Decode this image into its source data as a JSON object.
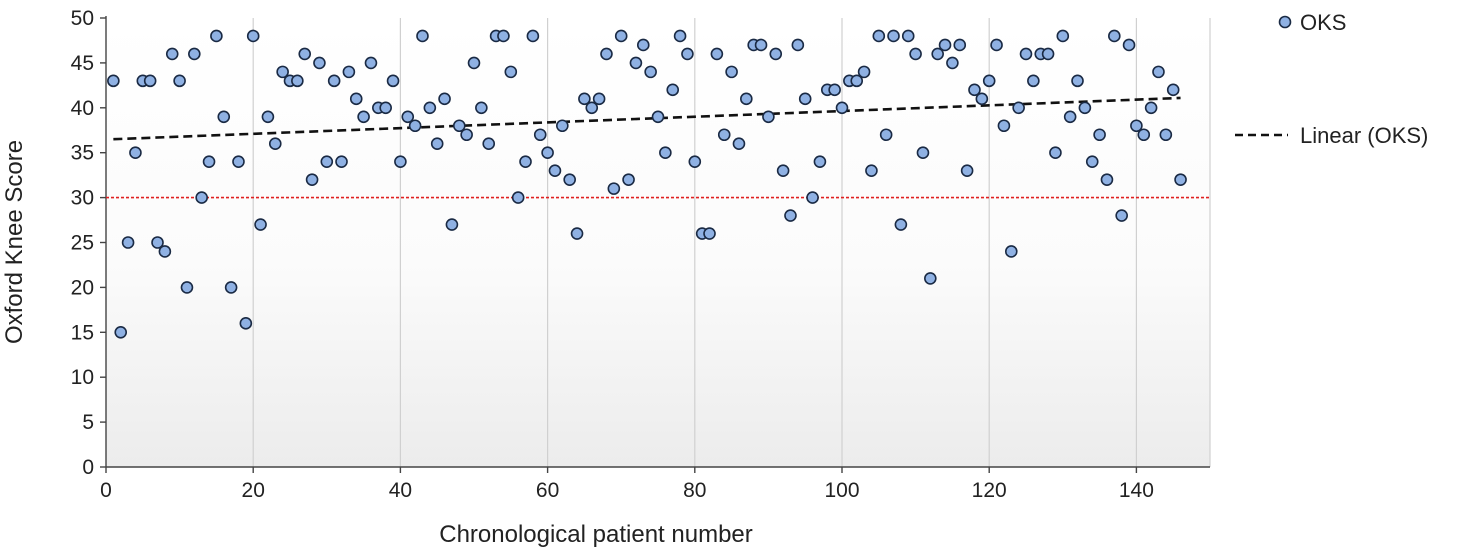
{
  "chart_data": {
    "type": "scatter",
    "title": "",
    "xlabel": "Chronological patient number",
    "ylabel": "Oxford Knee Score",
    "xlim": [
      0,
      150
    ],
    "ylim": [
      0,
      50
    ],
    "xticks": [
      0,
      20,
      40,
      60,
      80,
      100,
      120,
      140
    ],
    "yticks": [
      0,
      5,
      10,
      15,
      20,
      25,
      30,
      35,
      40,
      45,
      50
    ],
    "vertical_grid": true,
    "background": "light gradient (white to light grey)",
    "legend_position": "right",
    "series": [
      {
        "name": "OKS",
        "marker": "circle",
        "color": "#8fb1e3",
        "edge_color": "#1a2a44",
        "points": [
          [
            1,
            43
          ],
          [
            2,
            15
          ],
          [
            3,
            25
          ],
          [
            4,
            35
          ],
          [
            5,
            43
          ],
          [
            6,
            43
          ],
          [
            7,
            25
          ],
          [
            8,
            24
          ],
          [
            9,
            46
          ],
          [
            10,
            43
          ],
          [
            11,
            20
          ],
          [
            12,
            46
          ],
          [
            13,
            30
          ],
          [
            14,
            34
          ],
          [
            15,
            48
          ],
          [
            16,
            39
          ],
          [
            17,
            20
          ],
          [
            18,
            34
          ],
          [
            19,
            16
          ],
          [
            20,
            48
          ],
          [
            21,
            27
          ],
          [
            22,
            39
          ],
          [
            23,
            36
          ],
          [
            24,
            44
          ],
          [
            25,
            43
          ],
          [
            26,
            43
          ],
          [
            27,
            46
          ],
          [
            28,
            32
          ],
          [
            29,
            45
          ],
          [
            30,
            34
          ],
          [
            31,
            43
          ],
          [
            32,
            34
          ],
          [
            33,
            44
          ],
          [
            34,
            41
          ],
          [
            35,
            39
          ],
          [
            36,
            45
          ],
          [
            37,
            40
          ],
          [
            38,
            40
          ],
          [
            39,
            43
          ],
          [
            40,
            34
          ],
          [
            41,
            39
          ],
          [
            42,
            38
          ],
          [
            43,
            48
          ],
          [
            44,
            40
          ],
          [
            45,
            36
          ],
          [
            46,
            41
          ],
          [
            47,
            27
          ],
          [
            48,
            38
          ],
          [
            49,
            37
          ],
          [
            50,
            45
          ],
          [
            51,
            40
          ],
          [
            52,
            36
          ],
          [
            53,
            48
          ],
          [
            54,
            48
          ],
          [
            55,
            44
          ],
          [
            56,
            30
          ],
          [
            57,
            34
          ],
          [
            58,
            48
          ],
          [
            59,
            37
          ],
          [
            60,
            35
          ],
          [
            61,
            33
          ],
          [
            62,
            38
          ],
          [
            63,
            32
          ],
          [
            64,
            26
          ],
          [
            65,
            41
          ],
          [
            66,
            40
          ],
          [
            67,
            41
          ],
          [
            68,
            46
          ],
          [
            69,
            31
          ],
          [
            70,
            48
          ],
          [
            71,
            32
          ],
          [
            72,
            45
          ],
          [
            73,
            47
          ],
          [
            74,
            44
          ],
          [
            75,
            39
          ],
          [
            76,
            35
          ],
          [
            77,
            42
          ],
          [
            78,
            48
          ],
          [
            79,
            46
          ],
          [
            80,
            34
          ],
          [
            81,
            26
          ],
          [
            82,
            26
          ],
          [
            83,
            46
          ],
          [
            84,
            37
          ],
          [
            85,
            44
          ],
          [
            86,
            36
          ],
          [
            87,
            41
          ],
          [
            88,
            47
          ],
          [
            89,
            47
          ],
          [
            90,
            39
          ],
          [
            91,
            46
          ],
          [
            92,
            33
          ],
          [
            93,
            28
          ],
          [
            94,
            47
          ],
          [
            95,
            41
          ],
          [
            96,
            30
          ],
          [
            97,
            34
          ],
          [
            98,
            42
          ],
          [
            99,
            42
          ],
          [
            100,
            40
          ],
          [
            101,
            43
          ],
          [
            102,
            43
          ],
          [
            103,
            44
          ],
          [
            104,
            33
          ],
          [
            105,
            48
          ],
          [
            106,
            37
          ],
          [
            107,
            48
          ],
          [
            108,
            27
          ],
          [
            109,
            48
          ],
          [
            110,
            46
          ],
          [
            111,
            35
          ],
          [
            112,
            21
          ],
          [
            113,
            46
          ],
          [
            114,
            47
          ],
          [
            115,
            45
          ],
          [
            116,
            47
          ],
          [
            117,
            33
          ],
          [
            118,
            42
          ],
          [
            119,
            41
          ],
          [
            120,
            43
          ],
          [
            121,
            47
          ],
          [
            122,
            38
          ],
          [
            123,
            24
          ],
          [
            124,
            40
          ],
          [
            125,
            46
          ],
          [
            126,
            43
          ],
          [
            127,
            46
          ],
          [
            128,
            46
          ],
          [
            129,
            35
          ],
          [
            130,
            48
          ],
          [
            131,
            39
          ],
          [
            132,
            43
          ],
          [
            133,
            40
          ],
          [
            134,
            34
          ],
          [
            135,
            37
          ],
          [
            136,
            32
          ],
          [
            137,
            48
          ],
          [
            138,
            28
          ],
          [
            139,
            47
          ],
          [
            140,
            38
          ],
          [
            141,
            37
          ],
          [
            142,
            40
          ],
          [
            143,
            44
          ],
          [
            144,
            37
          ],
          [
            145,
            42
          ],
          [
            146,
            32
          ]
        ]
      },
      {
        "name": "Linear (OKS)",
        "type": "trendline",
        "style": "dashed",
        "color": "#111111",
        "points": [
          [
            1,
            36.5
          ],
          [
            146,
            41.1
          ]
        ]
      }
    ],
    "reference_lines": [
      {
        "y": 30,
        "color": "#e02020",
        "style": "dotted"
      }
    ]
  }
}
